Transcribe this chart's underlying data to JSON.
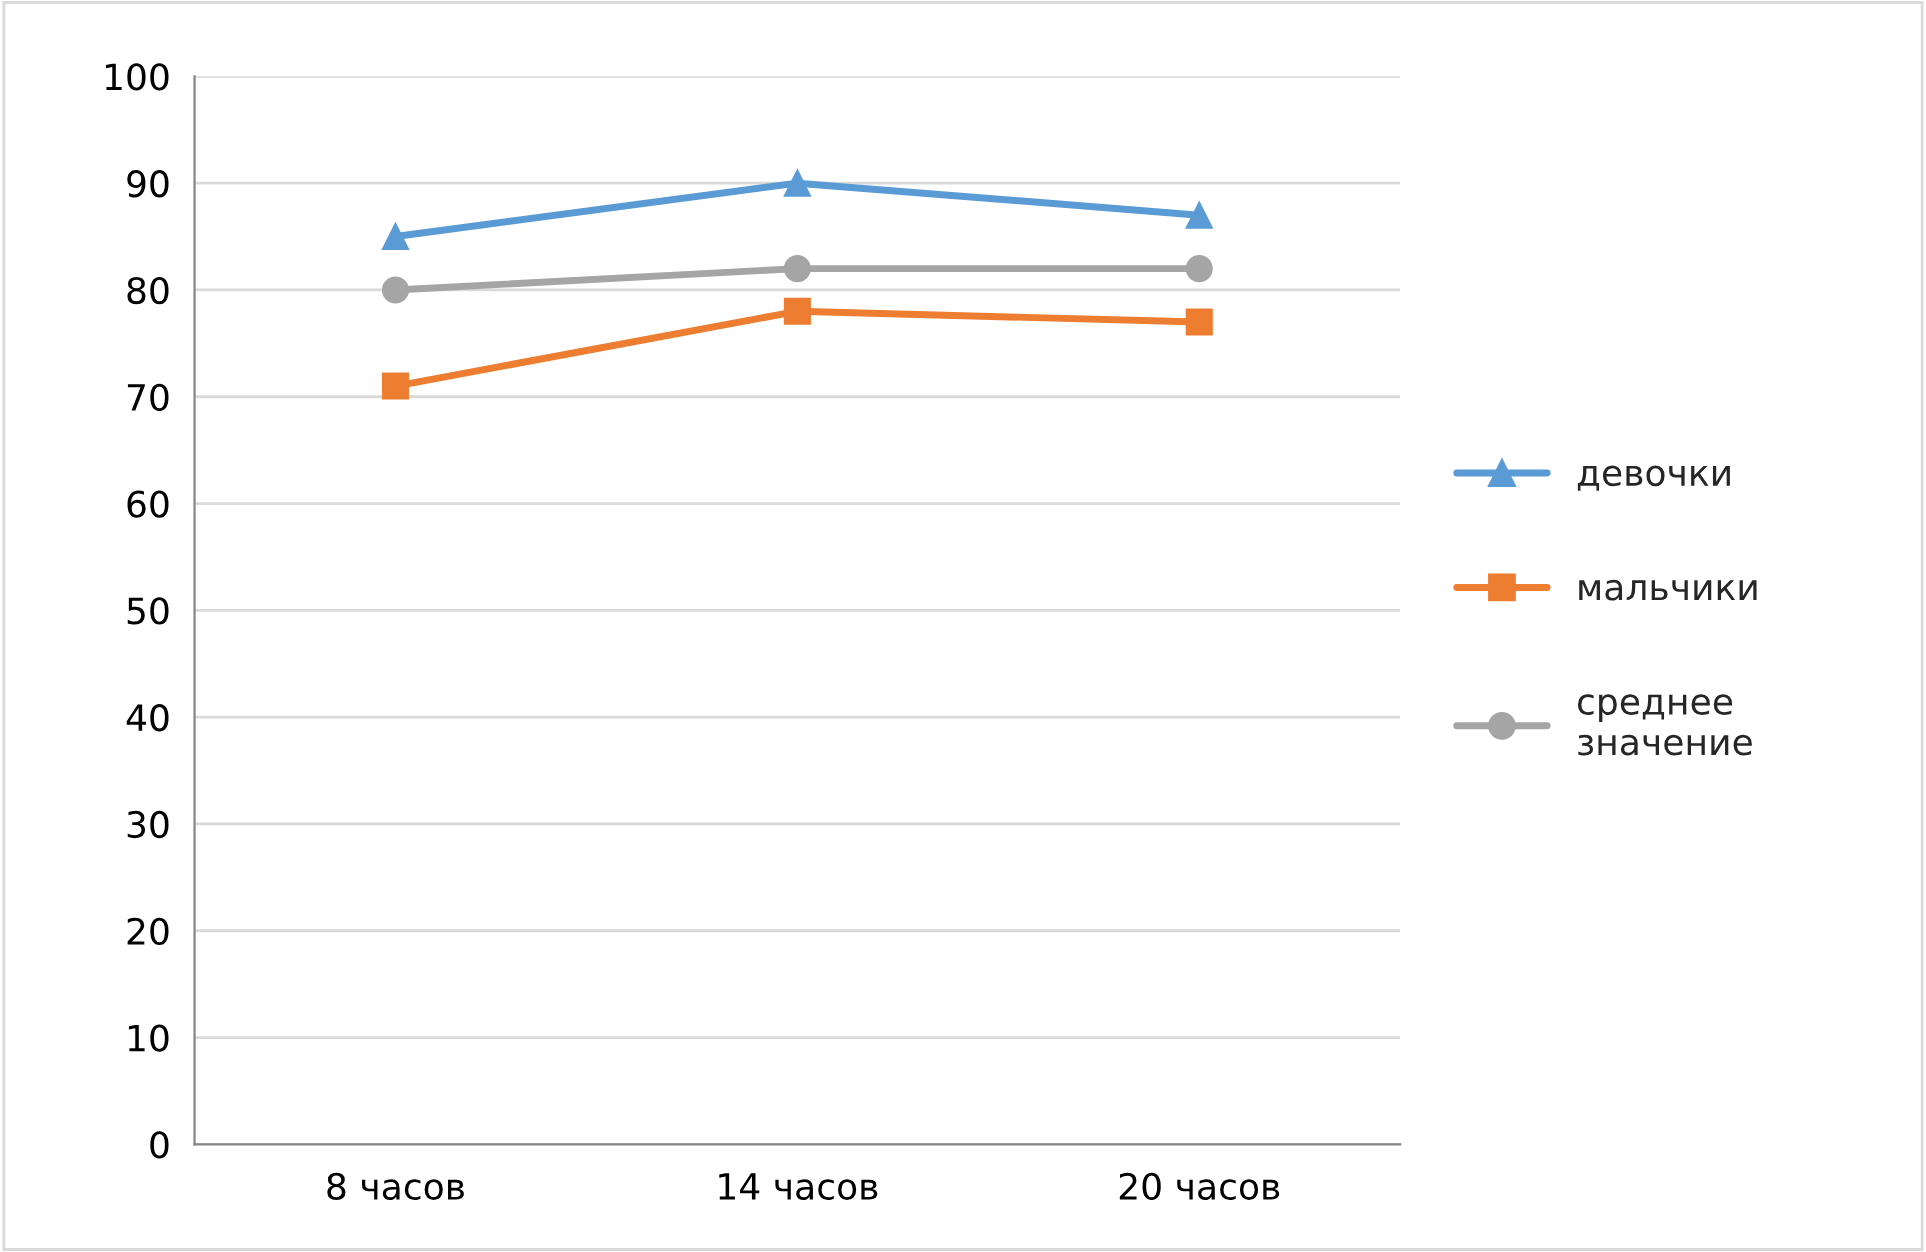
{
  "chart_data": {
    "type": "line",
    "categories": [
      "8 часов",
      "14 часов",
      "20 часов"
    ],
    "series": [
      {
        "name": "девочки",
        "color": "#5b9bd5",
        "marker": "triangle",
        "values": [
          85,
          90,
          87
        ]
      },
      {
        "name": "мальчики",
        "color": "#ed7d31",
        "marker": "square",
        "values": [
          71,
          78,
          77
        ]
      },
      {
        "name": "среднее\nзначение",
        "color": "#a5a5a5",
        "marker": "circle",
        "values": [
          80,
          82,
          82
        ]
      }
    ],
    "ylim": [
      0,
      100
    ],
    "yticks": [
      0,
      10,
      20,
      30,
      40,
      50,
      60,
      70,
      80,
      90,
      100
    ],
    "grid": "y",
    "legend": "right",
    "line_style": "solid"
  }
}
